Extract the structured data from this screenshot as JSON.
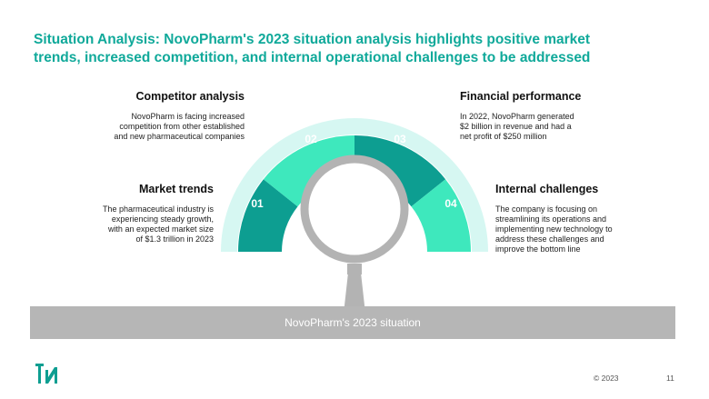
{
  "title": {
    "line1": "Situation Analysis: NovoPharm's 2023 situation analysis highlights positive market",
    "line2": "trends, increased competition, and internal operational challenges to be addressed"
  },
  "sections": {
    "competitor": {
      "number": "02",
      "heading": "Competitor analysis",
      "lines": [
        "NovoPharm is facing increased",
        "competition from other established",
        "and new pharmaceutical companies"
      ]
    },
    "financial": {
      "number": "03",
      "heading": "Financial performance",
      "lines": [
        "In 2022, NovoPharm generated",
        "$2 billion in revenue and had a",
        "net profit of $250 million"
      ]
    },
    "market": {
      "number": "01",
      "heading": "Market trends",
      "lines": [
        "The pharmaceutical industry is",
        "experiencing steady growth,",
        "with an expected market size",
        "of $1.3 trillion in 2023"
      ]
    },
    "internal": {
      "number": "04",
      "heading": "Internal challenges",
      "lines": [
        "The company is focusing on",
        "streamlining its operations and",
        "implementing new technology to",
        "address these challenges and",
        "improve the bottom line"
      ]
    }
  },
  "center_bar": "NovoPharm's 2023 situation",
  "footer": {
    "copyright": "© 2023",
    "page_number": "11"
  },
  "colors": {
    "title": "#10a99a",
    "dark_teal": "#0d9e91",
    "mint": "#3ee8bd",
    "light_band": "#d6f7f2",
    "magnifier": "#b3b3b3"
  }
}
